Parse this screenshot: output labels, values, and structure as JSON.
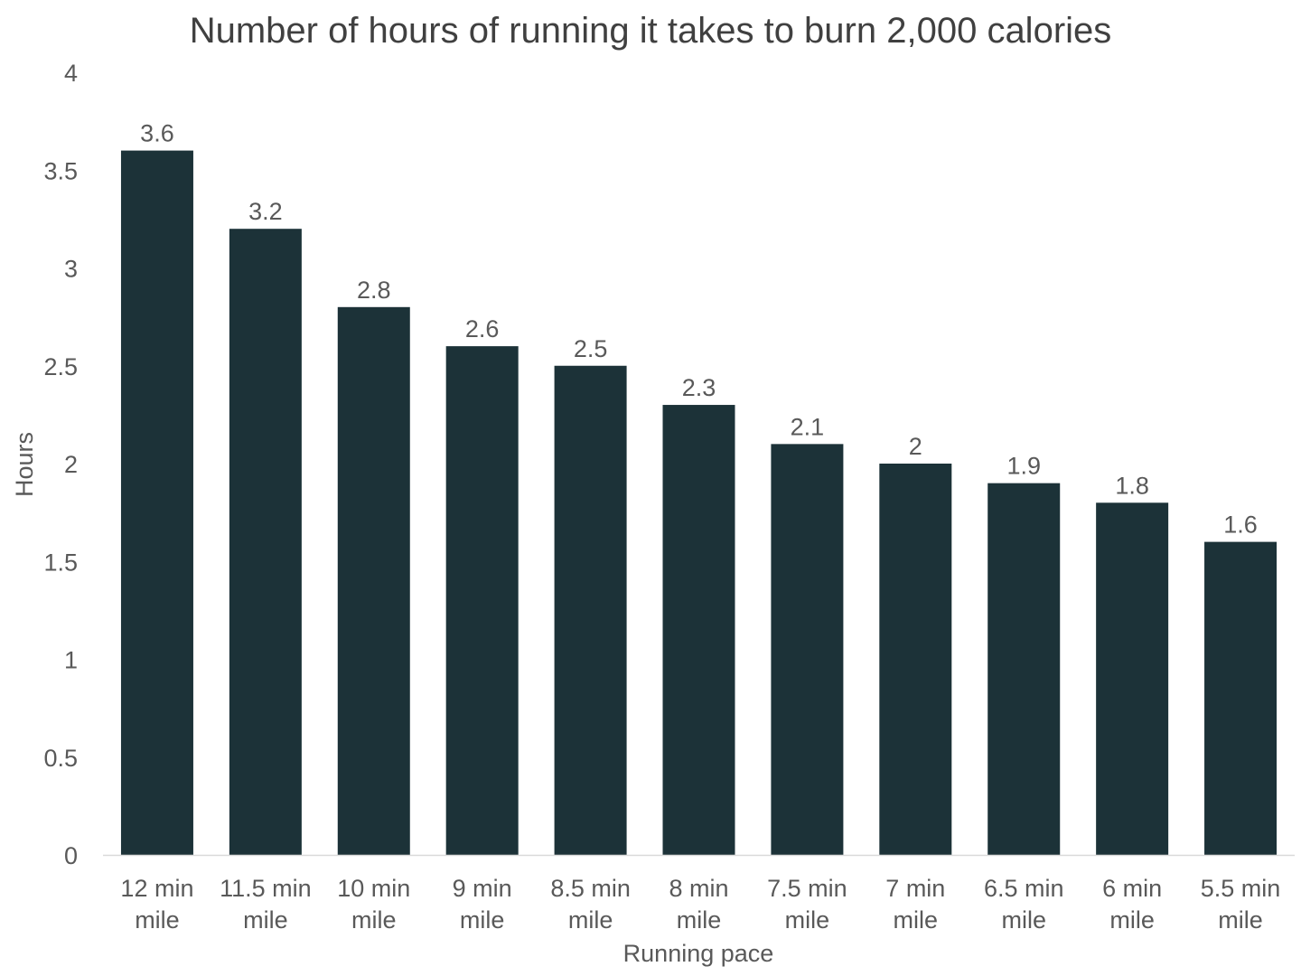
{
  "chart_data": {
    "type": "bar",
    "title": "Number of hours of running it takes to burn 2,000 calories",
    "xlabel": "Running pace",
    "ylabel": "Hours",
    "categories": [
      [
        "12 min",
        "mile"
      ],
      [
        "11.5 min",
        "mile"
      ],
      [
        "10 min",
        "mile"
      ],
      [
        "9 min",
        "mile"
      ],
      [
        "8.5 min",
        "mile"
      ],
      [
        "8 min",
        "mile"
      ],
      [
        "7.5 min",
        "mile"
      ],
      [
        "7 min",
        "mile"
      ],
      [
        "6.5 min",
        "mile"
      ],
      [
        "6 min",
        "mile"
      ],
      [
        "5.5 min",
        "mile"
      ]
    ],
    "values": [
      3.6,
      3.2,
      2.8,
      2.6,
      2.5,
      2.3,
      2.1,
      2,
      1.9,
      1.8,
      1.6
    ],
    "data_labels": [
      "3.6",
      "3.2",
      "2.8",
      "2.6",
      "2.5",
      "2.3",
      "2.1",
      "2",
      "1.9",
      "1.8",
      "1.6"
    ],
    "ylim": [
      0,
      4
    ],
    "yticks": [
      0,
      0.5,
      1,
      1.5,
      2,
      2.5,
      3,
      3.5,
      4
    ],
    "ytick_labels": [
      "0",
      "0.5",
      "1",
      "1.5",
      "2",
      "2.5",
      "3",
      "3.5",
      "4"
    ],
    "grid": false,
    "legend": "none",
    "colors": {
      "bar": "#1c3238",
      "text": "#595959",
      "title": "#404040",
      "axis": "#d9d9d9"
    }
  }
}
